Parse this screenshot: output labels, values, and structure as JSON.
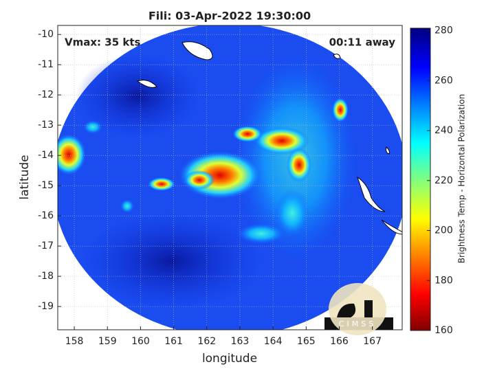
{
  "chart_data": {
    "type": "image",
    "title": "Fili: 03-Apr-2022 19:30:00",
    "annotations": [
      "Vmax: 35 kts",
      "00:11 away"
    ],
    "xlabel": "longitude",
    "ylabel": "latitude",
    "xlim": [
      157.5,
      167.9
    ],
    "xticks": [
      158,
      159,
      160,
      161,
      162,
      163,
      164,
      165,
      166,
      167
    ],
    "ylim": [
      -19.77,
      -9.7
    ],
    "yticks": [
      -10,
      -11,
      -12,
      -13,
      -14,
      -15,
      -16,
      -17,
      -18,
      -19
    ],
    "grid": true,
    "colorbar": {
      "label": "Brightness Temp - Horizontal Polarization",
      "clim": [
        160,
        281
      ],
      "ticks": [
        160,
        180,
        200,
        220,
        240,
        260,
        280
      ],
      "colormap": "jet"
    },
    "logo": "CIMSS"
  }
}
